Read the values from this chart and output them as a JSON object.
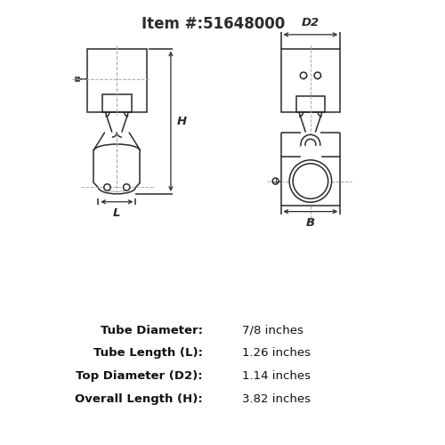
{
  "title": "Item #:51648000",
  "background_color": "#ffffff",
  "line_color": "#2a2a2a",
  "dashed_color": "#aaaaaa",
  "specs": [
    [
      "Tube Diameter:",
      "7/8 inches"
    ],
    [
      "Tube Length (L):",
      "1.26 inches"
    ],
    [
      "Top Diameter (D2):",
      "1.14 inches"
    ],
    [
      "Overall Length (H):",
      "3.82 inches"
    ]
  ],
  "title_fontsize": 12,
  "spec_fontsize": 9.5
}
